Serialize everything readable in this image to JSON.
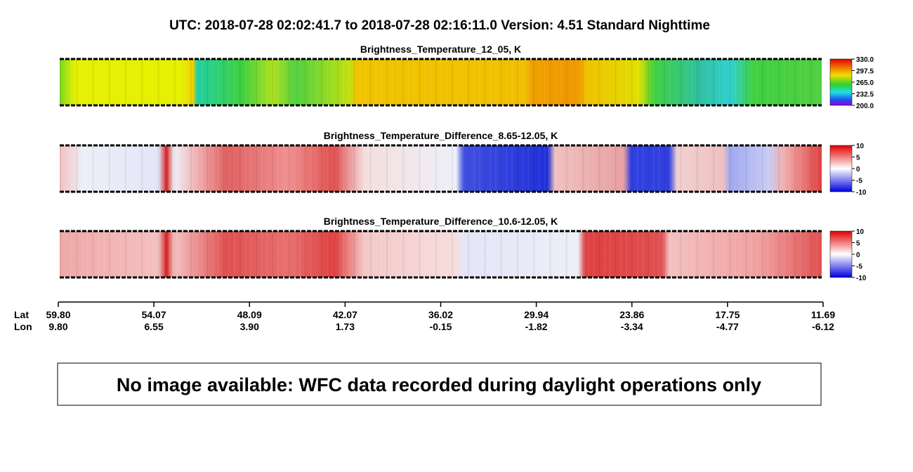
{
  "header": {
    "title": "UTC:  2018-07-28   02:02:41.7  to  2018-07-28   02:16:11.0    Version: 4.51  Standard Nighttime"
  },
  "panels": [
    {
      "title": "Brightness_Temperature_12_05, K",
      "colorbar_ticks": [
        "330.0",
        "297.5",
        "265.0",
        "232.5",
        "200.0"
      ]
    },
    {
      "title": "Brightness_Temperature_Difference_8.65-12.05, K",
      "colorbar_ticks": [
        "10",
        "5",
        "0",
        "-5",
        "-10"
      ]
    },
    {
      "title": "Brightness_Temperature_Difference_10.6-12.05, K",
      "colorbar_ticks": [
        "10",
        "5",
        "0",
        "-5",
        "-10"
      ]
    }
  ],
  "axis": {
    "lat_label": "Lat",
    "lon_label": "Lon",
    "ticks": [
      {
        "lat": "59.80",
        "lon": "9.80"
      },
      {
        "lat": "54.07",
        "lon": "6.55"
      },
      {
        "lat": "48.09",
        "lon": "3.90"
      },
      {
        "lat": "42.07",
        "lon": "1.73"
      },
      {
        "lat": "36.02",
        "lon": "-0.15"
      },
      {
        "lat": "29.94",
        "lon": "-1.82"
      },
      {
        "lat": "23.86",
        "lon": "-3.34"
      },
      {
        "lat": "17.75",
        "lon": "-4.77"
      },
      {
        "lat": "11.69",
        "lon": "-6.12"
      }
    ]
  },
  "message": "No image available: WFC data recorded during daylight operations only"
}
